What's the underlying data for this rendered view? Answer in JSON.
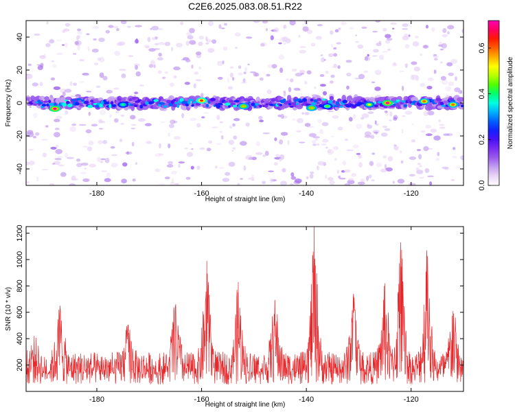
{
  "figure_title": "C2E6.2025.083.08.51.R22",
  "colors": {
    "snr_line": "#e8272a",
    "axes": "#000000",
    "background": "#ffffff",
    "colormap": [
      "#ffffff",
      "#e9d6f6",
      "#c4a0ef",
      "#9a5cec",
      "#7a2ff0",
      "#4a10f5",
      "#1420ff",
      "#0060ff",
      "#00b0ff",
      "#00ffe0",
      "#00ff70",
      "#50ff00",
      "#b8ff00",
      "#ffff00",
      "#ffb000",
      "#ff6000",
      "#ff1a00",
      "#ff0060",
      "#ff00b0"
    ]
  },
  "chart_data": [
    {
      "type": "heatmap",
      "title": "C2E6.2025.083.08.51.R22",
      "xlabel": "Height of straight line (km)",
      "ylabel": "Frequency (Hz)",
      "xlim": [
        -193.5,
        -110
      ],
      "ylim": [
        -50,
        50
      ],
      "xticks": [
        "-180",
        "-160",
        "-140",
        "-120"
      ],
      "xtick_values": [
        -180,
        -160,
        -140,
        -120
      ],
      "yticks": [
        "-40",
        "-20",
        "0",
        "20",
        "40"
      ],
      "ytick_values": [
        -40,
        -20,
        0,
        20,
        40
      ],
      "grid": false,
      "colorbar": {
        "label": "Normalized spectral amplitude",
        "range": [
          0,
          0.72
        ],
        "ticks": [
          "0.0",
          "0.2",
          "0.4",
          "0.6"
        ],
        "tick_values": [
          0.0,
          0.2,
          0.4,
          0.6
        ]
      },
      "band": {
        "center_frequency_hz": 0,
        "half_width_hz": 5,
        "mean_amplitude": 0.25
      },
      "hotspots": [
        {
          "x": -188.0,
          "y": -3.5,
          "amplitude": 0.7
        },
        {
          "x": -175.0,
          "y": -1.0,
          "amplitude": 0.4
        },
        {
          "x": -160.0,
          "y": 1.5,
          "amplitude": 0.65
        },
        {
          "x": -152.0,
          "y": -2.0,
          "amplitude": 0.55
        },
        {
          "x": -139.0,
          "y": -3.0,
          "amplitude": 0.55
        },
        {
          "x": -136.0,
          "y": -2.0,
          "amplitude": 0.45
        },
        {
          "x": -128.0,
          "y": -1.0,
          "amplitude": 0.5
        },
        {
          "x": -124.5,
          "y": 0.0,
          "amplitude": 0.7
        },
        {
          "x": -117.5,
          "y": 1.0,
          "amplitude": 0.6
        },
        {
          "x": -112.0,
          "y": -1.0,
          "amplitude": 0.6
        }
      ]
    },
    {
      "type": "line",
      "xlabel": "Height of straight line (km)",
      "ylabel": "SNR (10 * v/v)",
      "xlim": [
        -193.5,
        -110
      ],
      "ylim": [
        0,
        1250
      ],
      "xticks": [
        "-180",
        "-160",
        "-140",
        "-120"
      ],
      "xtick_values": [
        -180,
        -160,
        -140,
        -120
      ],
      "yticks": [
        "200",
        "400",
        "600",
        "800",
        "1000",
        "1200"
      ],
      "ytick_values": [
        200,
        400,
        600,
        800,
        1000,
        1200
      ],
      "grid": false,
      "baseline_snr": 150,
      "peaks": [
        {
          "x": -192.0,
          "y": 330
        },
        {
          "x": -187.0,
          "y": 650
        },
        {
          "x": -174.0,
          "y": 450
        },
        {
          "x": -165.0,
          "y": 650
        },
        {
          "x": -159.0,
          "y": 990
        },
        {
          "x": -153.0,
          "y": 830
        },
        {
          "x": -146.0,
          "y": 690
        },
        {
          "x": -138.5,
          "y": 1250
        },
        {
          "x": -131.0,
          "y": 740
        },
        {
          "x": -125.0,
          "y": 820
        },
        {
          "x": -122.0,
          "y": 1130
        },
        {
          "x": -117.0,
          "y": 1070
        },
        {
          "x": -112.0,
          "y": 610
        }
      ]
    }
  ]
}
